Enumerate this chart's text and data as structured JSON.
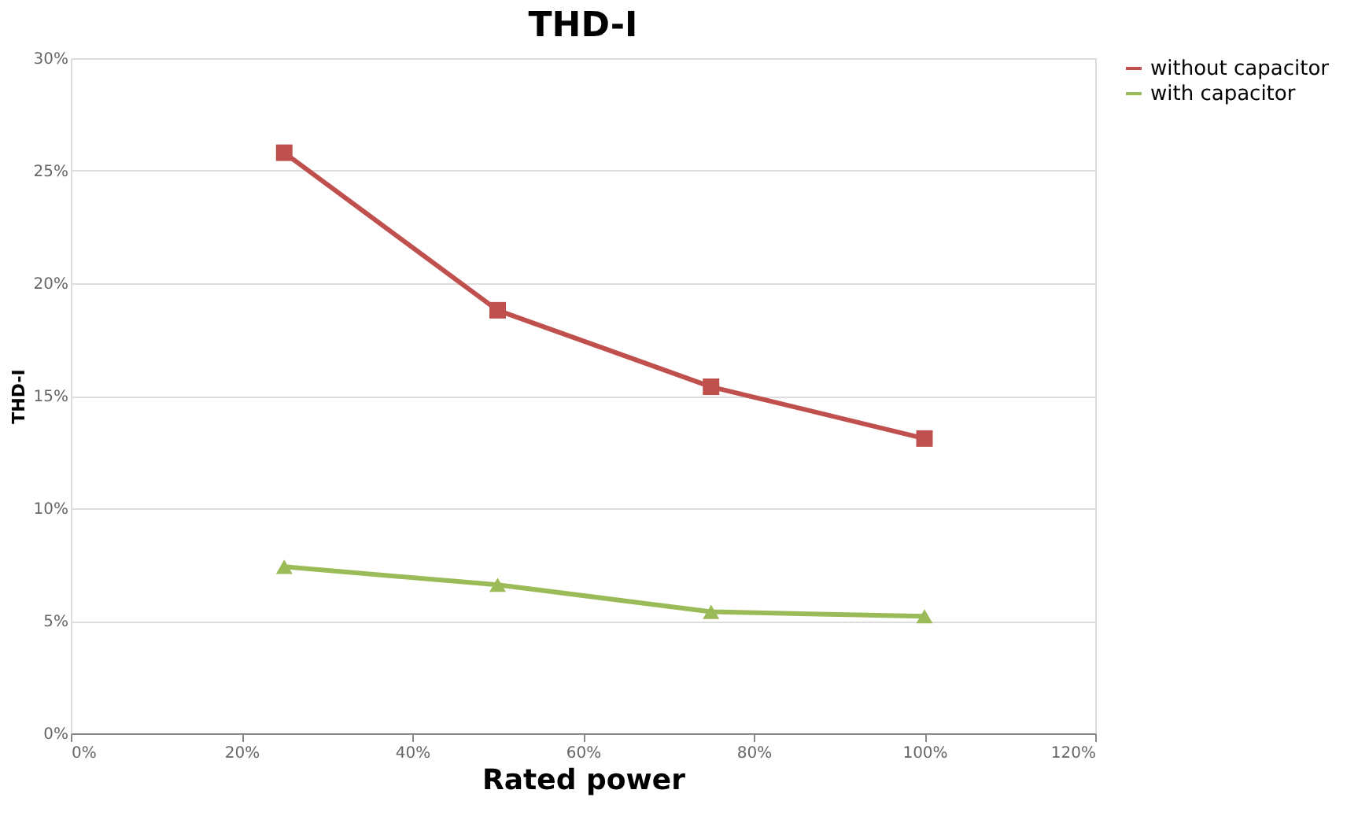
{
  "chart_data": {
    "type": "line",
    "title": "THD-I",
    "xlabel": "Rated power",
    "ylabel": "THD-I",
    "x": [
      25,
      50,
      75,
      100
    ],
    "series": [
      {
        "name": "without capacitor",
        "color": "#c0504d",
        "values": [
          25.8,
          18.8,
          15.4,
          13.1
        ],
        "marker": "square"
      },
      {
        "name": "with capacitor",
        "color": "#9bbb59",
        "values": [
          7.4,
          6.6,
          5.4,
          5.2
        ],
        "marker": "triangle"
      }
    ],
    "xlim": [
      0,
      120
    ],
    "xticks": [
      {
        "value": 0,
        "label": "0%"
      },
      {
        "value": 20,
        "label": "20%"
      },
      {
        "value": 40,
        "label": "40%"
      },
      {
        "value": 60,
        "label": "60%"
      },
      {
        "value": 80,
        "label": "80%"
      },
      {
        "value": 100,
        "label": "100%"
      },
      {
        "value": 120,
        "label": "120%"
      }
    ],
    "ylim": [
      0,
      30
    ],
    "yticks": [
      {
        "value": 0,
        "label": "0%"
      },
      {
        "value": 5,
        "label": "5%"
      },
      {
        "value": 10,
        "label": "10%"
      },
      {
        "value": 15,
        "label": "15%"
      },
      {
        "value": 20,
        "label": "20%"
      },
      {
        "value": 25,
        "label": "25%"
      },
      {
        "value": 30,
        "label": "30%"
      }
    ],
    "grid": "y",
    "legend": "right",
    "line_style": "solid"
  }
}
